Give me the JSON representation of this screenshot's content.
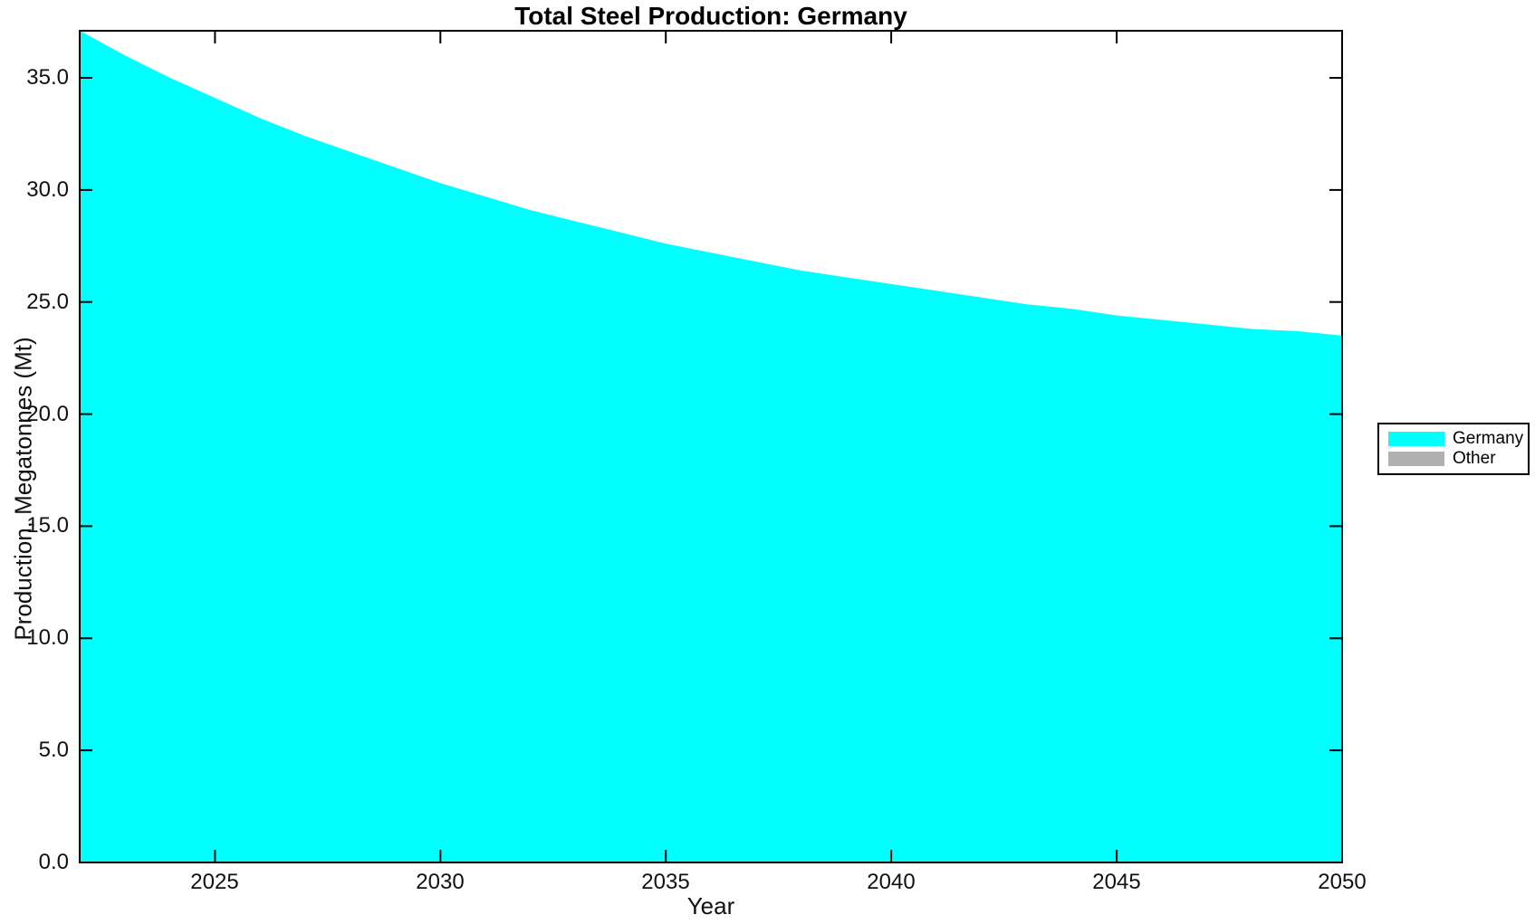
{
  "page": {
    "background": "#FFFFFF"
  },
  "chart_data": {
    "type": "area",
    "title": "Total Steel Production: Germany",
    "xlabel": "Year",
    "ylabel": "Production, Megatonnes (Mt)",
    "x": [
      2022,
      2023,
      2024,
      2025,
      2026,
      2027,
      2028,
      2029,
      2030,
      2031,
      2032,
      2033,
      2034,
      2035,
      2036,
      2037,
      2038,
      2039,
      2040,
      2041,
      2042,
      2043,
      2044,
      2045,
      2046,
      2047,
      2048,
      2049,
      2050
    ],
    "series": [
      {
        "name": "Germany",
        "color": "#00FFFF",
        "values": [
          37.1,
          36.0,
          35.0,
          34.1,
          33.2,
          32.4,
          31.7,
          31.0,
          30.3,
          29.7,
          29.1,
          28.6,
          28.1,
          27.6,
          27.2,
          26.8,
          26.4,
          26.1,
          25.8,
          25.5,
          25.2,
          24.9,
          24.7,
          24.4,
          24.2,
          24.0,
          23.8,
          23.7,
          23.5
        ]
      }
    ],
    "legend": [
      {
        "label": "Germany",
        "color": "#00FFFF"
      },
      {
        "label": "Other",
        "color": "#B0B0B0"
      }
    ],
    "legend_position": "right-outside",
    "grid": false,
    "xlim": [
      2022,
      2050
    ],
    "ylim": [
      0,
      37.1
    ],
    "x_ticks": [
      2025,
      2030,
      2035,
      2040,
      2045,
      2050
    ],
    "x_tick_labels": [
      "2025",
      "2030",
      "2035",
      "2040",
      "2045",
      "2050"
    ],
    "y_ticks": [
      0,
      5,
      10,
      15,
      20,
      25,
      30,
      35
    ],
    "y_tick_labels": [
      "0.0",
      "5.0",
      "10.0",
      "15.0",
      "20.0",
      "25.0",
      "30.0",
      "35.0"
    ],
    "axis_color": "#000000",
    "tick_direction": "in",
    "frame": "box-with-mirrored-ticks"
  }
}
